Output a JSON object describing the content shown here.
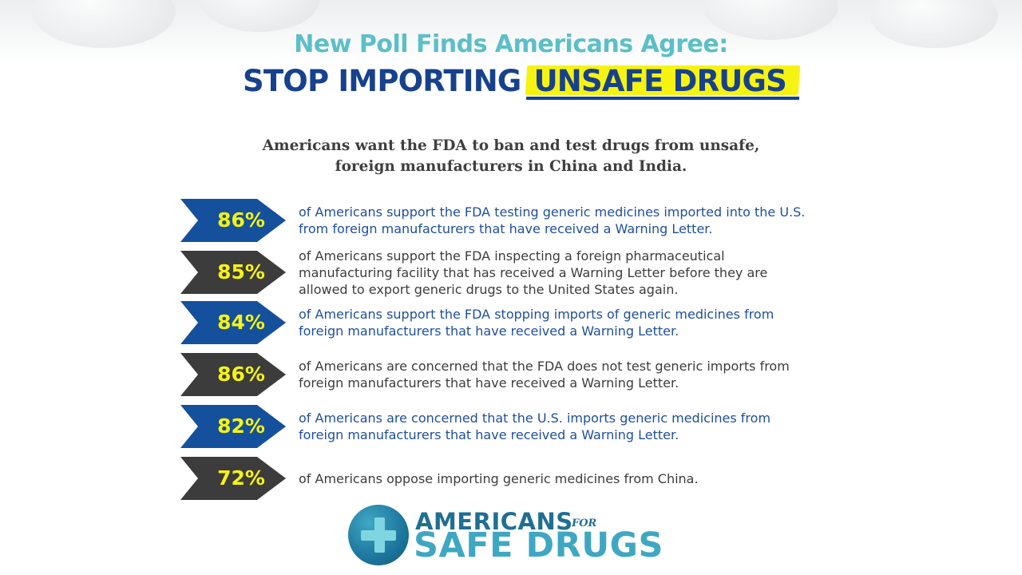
{
  "header": {
    "line1": "New Poll Finds Americans Agree:",
    "line2_plain": "STOP IMPORTING",
    "line2_highlight": "UNSAFE DRUGS"
  },
  "subtitle": "Americans want the FDA to ban and test drugs from unsafe, foreign manufacturers in China and India.",
  "stats": [
    {
      "percent": "86%",
      "text": "of Americans support the FDA testing generic medicines imported into the U.S. from foreign manufacturers that have received a Warning Letter."
    },
    {
      "percent": "85%",
      "text": "of Americans support the FDA inspecting a foreign pharmaceutical manufacturing facility that has received a Warning Letter before they are allowed to export generic drugs to the United States again."
    },
    {
      "percent": "84%",
      "text": "of Americans support the FDA stopping imports of generic medicines from foreign manufacturers that have received a Warning Letter."
    },
    {
      "percent": "86%",
      "text": "of Americans are concerned that the FDA does not test generic imports from foreign manufacturers that have received a Warning Letter."
    },
    {
      "percent": "82%",
      "text": "of Americans are concerned that the U.S. imports generic medicines from foreign manufacturers that have received a Warning Letter."
    },
    {
      "percent": "72%",
      "text": "of Americans oppose importing generic medicines from China."
    }
  ],
  "logo": {
    "top": "AMERICANS",
    "for": "FOR",
    "bottom": "SAFE DRUGS"
  },
  "colors": {
    "title_teal": "#5bbfc9",
    "title_navy": "#17418d",
    "highlight_yellow": "#f6f312",
    "arrow_blue": "#15509d",
    "arrow_dark": "#3c3c3c",
    "logo_teal": "#3fa7c2"
  },
  "icons": {
    "logo_mark": "medical-plus-icon"
  }
}
